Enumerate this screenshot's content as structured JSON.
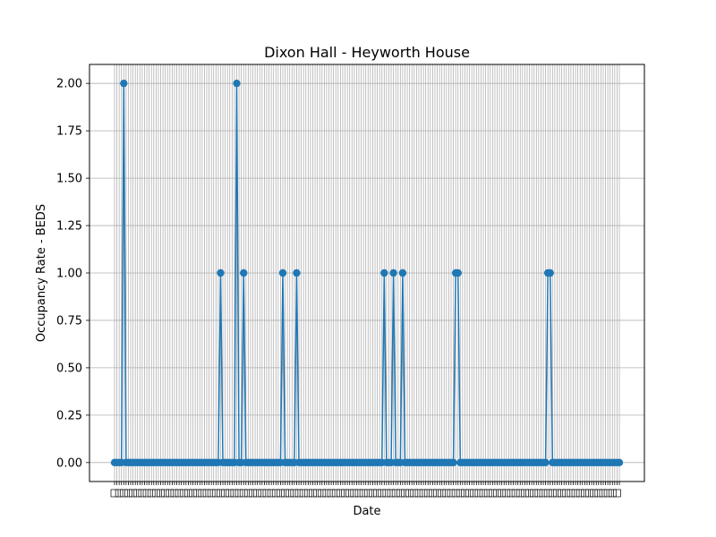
{
  "chart_data": {
    "type": "line",
    "title": "Dixon Hall - Heyworth House",
    "xlabel": "Date",
    "ylabel": "Occupancy Rate - BEDS",
    "ylim": [
      -0.1,
      2.1
    ],
    "yticks": [
      "0.00",
      "0.25",
      "0.50",
      "0.75",
      "1.00",
      "1.25",
      "1.50",
      "1.75",
      "2.00"
    ],
    "grid": true,
    "marker": "circle",
    "x_tick_labels_legible": false,
    "point_count": 220,
    "spikes": [
      {
        "index": 4,
        "value": 2
      },
      {
        "index": 46,
        "value": 1
      },
      {
        "index": 53,
        "value": 2
      },
      {
        "index": 56,
        "value": 1
      },
      {
        "index": 73,
        "value": 1
      },
      {
        "index": 79,
        "value": 1
      },
      {
        "index": 117,
        "value": 1
      },
      {
        "index": 121,
        "value": 1
      },
      {
        "index": 125,
        "value": 1
      },
      {
        "index": 148,
        "value": 1
      },
      {
        "index": 149,
        "value": 1
      },
      {
        "index": 188,
        "value": 1
      },
      {
        "index": 189,
        "value": 1
      }
    ],
    "series_color": "#1f77b4"
  }
}
